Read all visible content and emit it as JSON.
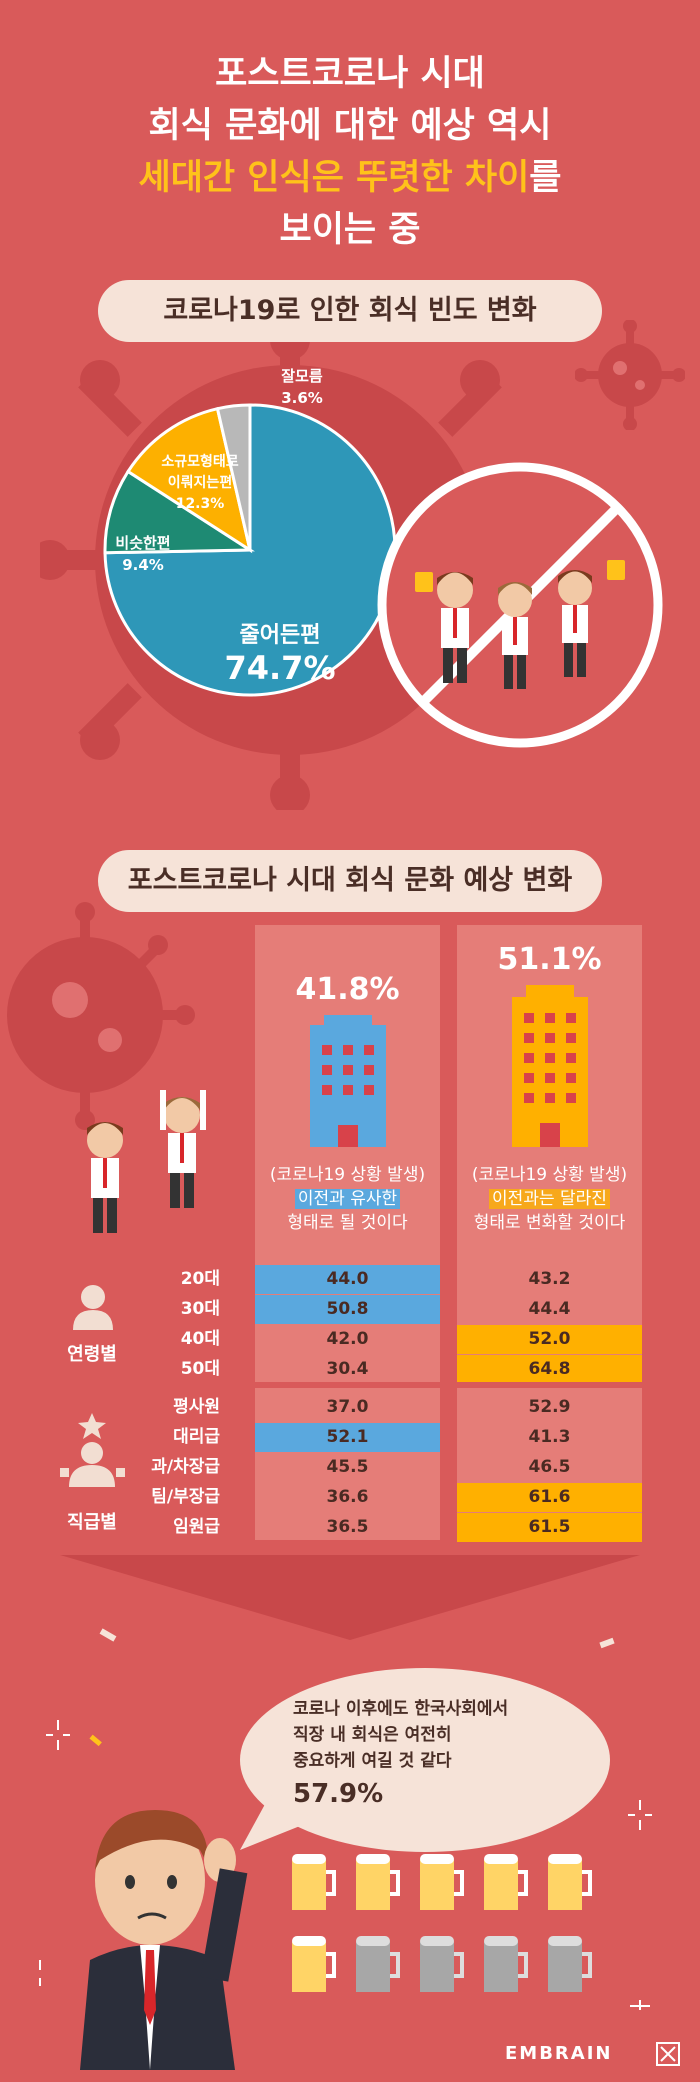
{
  "header": {
    "line1": "포스트코로나 시대",
    "line2": "회식 문화에 대한 예상 역시",
    "line3_hl1": "세대간 인식은",
    "line3_hl2": "뚜렷한 차이",
    "line3_tail": "를",
    "line4": "보이는 중"
  },
  "section1": {
    "title": "코로나19로 인한 회식 빈도 변화"
  },
  "chart_data": {
    "type": "pie",
    "slices": [
      {
        "label": "줄어든편",
        "value": 74.7,
        "value_label": "74.7%",
        "color": "#2E97B8"
      },
      {
        "label": "비슷한편",
        "value": 9.4,
        "value_label": "9.4%",
        "color": "#1E8A73"
      },
      {
        "label": "소규모형태로 이뤄지는편",
        "value": 12.3,
        "value_label": "12.3%",
        "color": "#FDB000"
      },
      {
        "label": "잘모름",
        "value": 3.6,
        "value_label": "3.6%",
        "color": "#B8B8B8"
      }
    ]
  },
  "pie_labels": {
    "reduced_name": "줄어든편",
    "reduced_val": "74.7%",
    "similar_name": "비슷한편",
    "similar_val": "9.4%",
    "small_name1": "소규모형태로",
    "small_name2": "이뤄지는편",
    "small_val": "12.3%",
    "unknown_name": "잘모름",
    "unknown_val": "3.6%"
  },
  "section2": {
    "title": "포스트코로나 시대 회식 문화 예상 변화",
    "col1": {
      "pct": "41.8%",
      "d1": "(코로나19 상황 발생)",
      "d2": "이전과 유사한",
      "d3": "형태로 될 것이다"
    },
    "col2": {
      "pct": "51.1%",
      "d1": "(코로나19 상황 발생)",
      "d2": "이전과는 달라진",
      "d3": "형태로 변화할 것이다"
    },
    "age_group": "연령별",
    "rank_group": "직급별",
    "age_rows": [
      {
        "label": "20대",
        "v1": "44.0",
        "v2": "43.2"
      },
      {
        "label": "30대",
        "v1": "50.8",
        "v2": "44.4"
      },
      {
        "label": "40대",
        "v1": "42.0",
        "v2": "52.0"
      },
      {
        "label": "50대",
        "v1": "30.4",
        "v2": "64.8"
      }
    ],
    "rank_rows": [
      {
        "label": "평사원",
        "v1": "37.0",
        "v2": "52.9"
      },
      {
        "label": "대리급",
        "v1": "52.1",
        "v2": "41.3"
      },
      {
        "label": "과/차장급",
        "v1": "45.5",
        "v2": "46.5"
      },
      {
        "label": "팀/부장급",
        "v1": "36.6",
        "v2": "61.6"
      },
      {
        "label": "임원급",
        "v1": "36.5",
        "v2": "61.5"
      }
    ]
  },
  "bubble": {
    "l1": "코로나 이후에도 한국사회에서",
    "l2": "직장 내 회식은 여전히",
    "l3": "중요하게 여길 것 같다",
    "pct": "57.9%"
  },
  "brand": {
    "name": "EMBRAIN"
  }
}
